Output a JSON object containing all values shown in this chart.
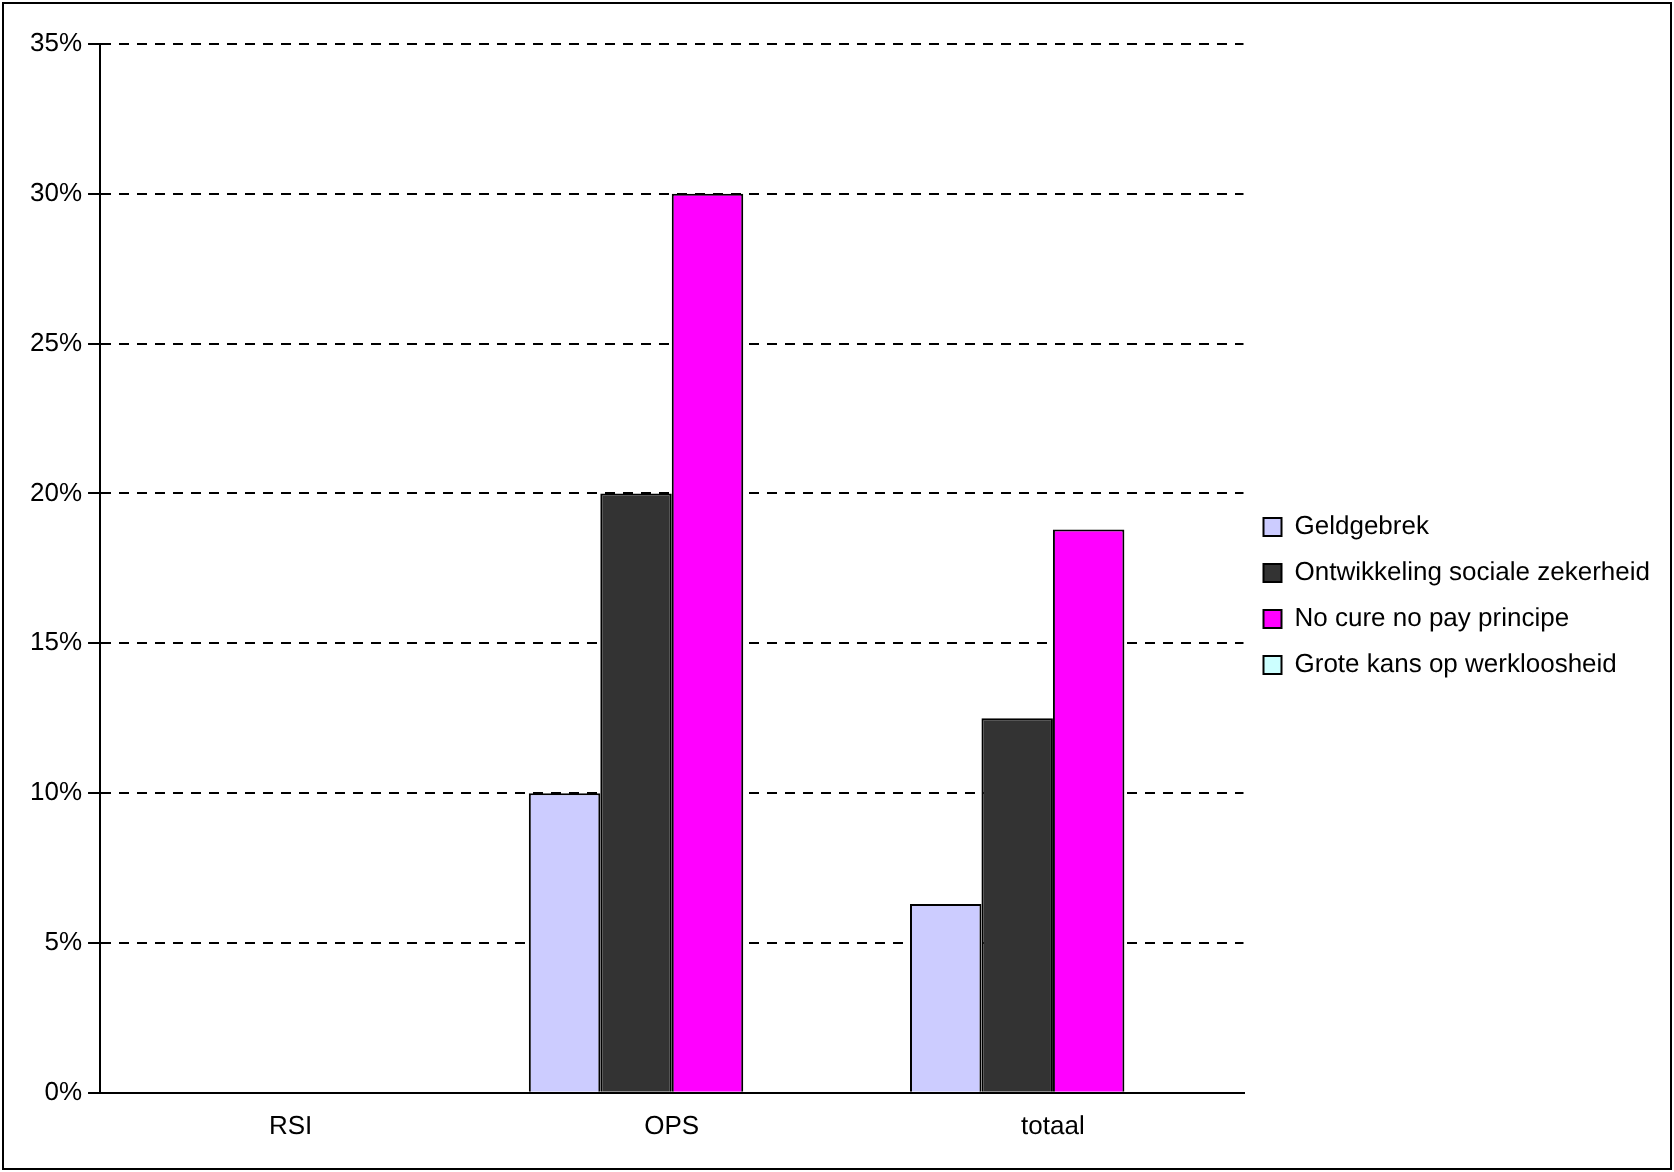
{
  "chart_data": {
    "type": "bar",
    "categories": [
      "RSI",
      "OPS",
      "totaal"
    ],
    "series": [
      {
        "name": "Geldgebrek",
        "color": "#ccccff",
        "values": [
          0,
          10,
          6.3
        ]
      },
      {
        "name": "Ontwikkeling sociale zekerheid",
        "color": "#333333",
        "values": [
          0,
          20,
          12.5
        ]
      },
      {
        "name": "No cure no pay principe",
        "color": "#ff00ff",
        "values": [
          0,
          30,
          18.8
        ]
      },
      {
        "name": "Grote kans op werkloosheid",
        "color": "#ccffff",
        "values": [
          0,
          0,
          0
        ]
      }
    ],
    "ylim": [
      0,
      35
    ],
    "yticks": [
      {
        "value": 0,
        "label": "0%"
      },
      {
        "value": 5,
        "label": "5%"
      },
      {
        "value": 10,
        "label": "10%"
      },
      {
        "value": 15,
        "label": "15%"
      },
      {
        "value": 20,
        "label": "20%"
      },
      {
        "value": 25,
        "label": "25%"
      },
      {
        "value": 30,
        "label": "30%"
      },
      {
        "value": 35,
        "label": "35%"
      }
    ],
    "grid": "y",
    "legend": "right"
  }
}
